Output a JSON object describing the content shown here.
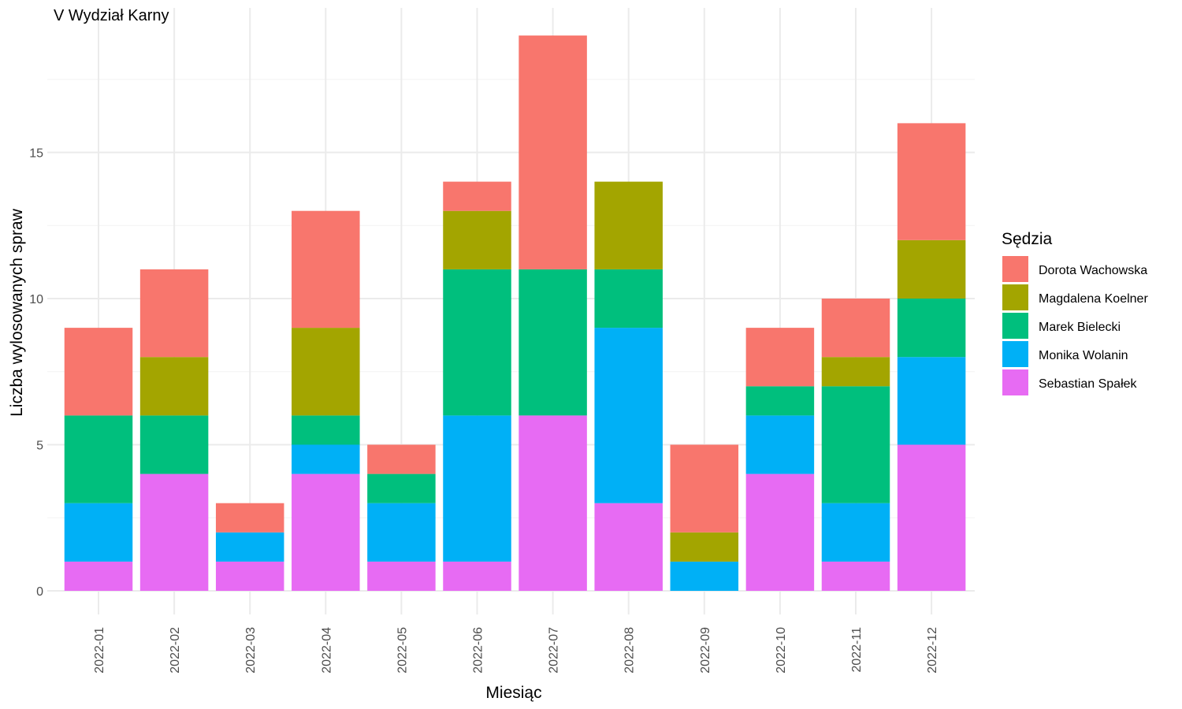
{
  "chart_data": {
    "type": "bar",
    "stacked": true,
    "title": "V Wydział Karny",
    "xlabel": "Miesiąc",
    "ylabel": "Liczba wylosowanych spraw",
    "ylim": [
      0,
      19
    ],
    "yticks": [
      0,
      5,
      10,
      15
    ],
    "grid": true,
    "legend_title": "Sędzia",
    "legend_position": "right",
    "categories": [
      "2022-01",
      "2022-02",
      "2022-03",
      "2022-04",
      "2022-05",
      "2022-06",
      "2022-07",
      "2022-08",
      "2022-09",
      "2022-10",
      "2022-11",
      "2022-12"
    ],
    "series": [
      {
        "name": "Sebastian Spałek",
        "color": "#E76BF3",
        "values": [
          1,
          4,
          1,
          4,
          1,
          1,
          6,
          3,
          0,
          4,
          1,
          5
        ]
      },
      {
        "name": "Monika Wolanin",
        "color": "#00B0F6",
        "values": [
          2,
          0,
          1,
          1,
          2,
          5,
          0,
          6,
          1,
          2,
          2,
          3
        ]
      },
      {
        "name": "Marek Bielecki",
        "color": "#00BF7D",
        "values": [
          3,
          2,
          0,
          1,
          1,
          5,
          5,
          2,
          0,
          1,
          4,
          2
        ]
      },
      {
        "name": "Magdalena Koelner",
        "color": "#A3A500",
        "values": [
          0,
          2,
          0,
          3,
          0,
          2,
          0,
          3,
          1,
          0,
          1,
          2
        ]
      },
      {
        "name": "Dorota Wachowska",
        "color": "#F8766D",
        "values": [
          3,
          3,
          1,
          4,
          1,
          1,
          8,
          0,
          3,
          2,
          2,
          4
        ]
      }
    ],
    "legend_order": [
      "Dorota Wachowska",
      "Magdalena Koelner",
      "Marek Bielecki",
      "Monika Wolanin",
      "Sebastian Spałek"
    ]
  }
}
